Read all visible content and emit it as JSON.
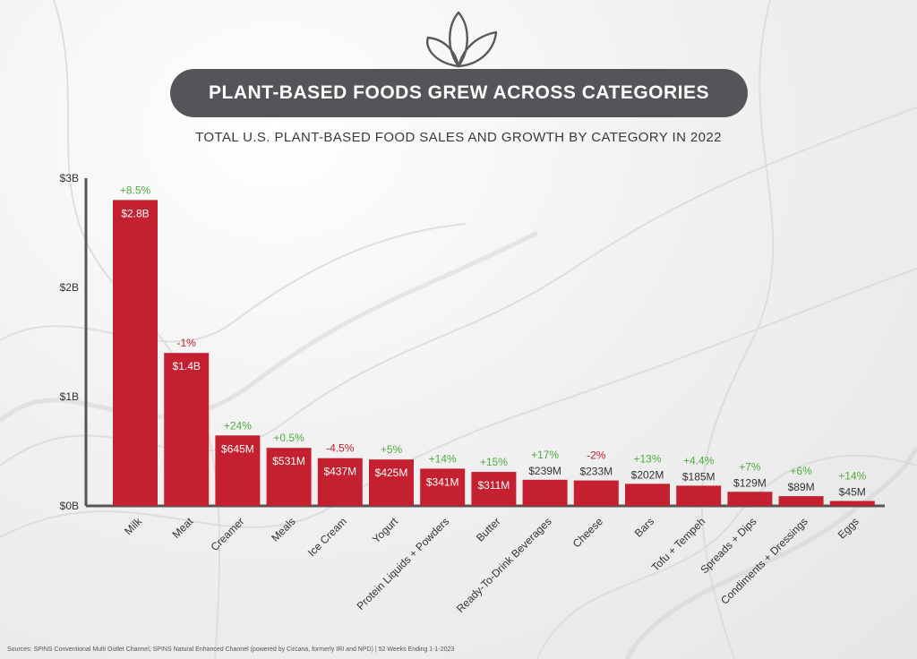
{
  "title": "PLANT-BASED FOODS GREW ACROSS CATEGORIES",
  "subtitle": "TOTAL U.S. PLANT-BASED FOOD SALES AND GROWTH BY CATEGORY IN 2022",
  "sources": "Sources: SPINS Conventional Multi Outlet Channel, SPINS Natural Enhanced Channel (powered by Circana, formerly IRI and NPD) | 52 Weeks Ending 1-1-2023",
  "logo_icon": "leaf-sprout-icon",
  "colors": {
    "bar": "#c4202f",
    "positive": "#4cae3c",
    "negative": "#c4202f",
    "title_bg": "#545558"
  },
  "chart_data": {
    "type": "bar",
    "title": "PLANT-BASED FOODS GREW ACROSS CATEGORIES",
    "subtitle": "TOTAL U.S. PLANT-BASED FOOD SALES AND GROWTH BY CATEGORY IN 2022",
    "xlabel": "",
    "ylabel": "",
    "ylim": [
      0,
      3
    ],
    "y_unit": "billions USD",
    "yticks": [
      0,
      1,
      2,
      3
    ],
    "ytick_labels": [
      "$0B",
      "$1B",
      "$2B",
      "$3B"
    ],
    "grid": false,
    "categories": [
      "Milk",
      "Meat",
      "Creamer",
      "Meals",
      "Ice Cream",
      "Yogurt",
      "Protein Liquids + Powders",
      "Butter",
      "Ready-To-Drink Beverages",
      "Cheese",
      "Bars",
      "Tofu + Tempeh",
      "Spreads + Dips",
      "Condiments + Dressings",
      "Eggs"
    ],
    "values": [
      2.8,
      1.4,
      0.645,
      0.531,
      0.437,
      0.425,
      0.341,
      0.311,
      0.239,
      0.233,
      0.202,
      0.185,
      0.129,
      0.089,
      0.045
    ],
    "value_labels": [
      "$2.8B",
      "$1.4B",
      "$645M",
      "$531M",
      "$437M",
      "$425M",
      "$341M",
      "$311M",
      "$239M",
      "$233M",
      "$202M",
      "$185M",
      "$129M",
      "$89M",
      "$45M"
    ],
    "growth_labels": [
      "+8.5%",
      "-1%",
      "+24%",
      "+0.5%",
      "-4.5%",
      "+5%",
      "+14%",
      "+15%",
      "+17%",
      "-2%",
      "+13%",
      "+4.4%",
      "+7%",
      "+6%",
      "+14%"
    ],
    "growth": [
      8.5,
      -1,
      24,
      0.5,
      -4.5,
      5,
      14,
      15,
      17,
      -2,
      13,
      4.4,
      7,
      6,
      14
    ]
  }
}
